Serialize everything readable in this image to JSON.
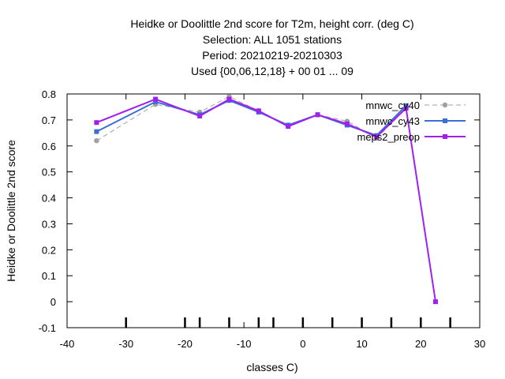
{
  "chart_data": {
    "type": "line",
    "title_lines": [
      "Heidke or Doolittle 2nd score  for T2m, height corr. (deg C)",
      "Selection: ALL    1051 stations",
      "Period: 20210219-20210303",
      "Used {00,06,12,18} + 00 01 ... 09"
    ],
    "xlabel": "classes C)",
    "ylabel": "Heidke or Doolittle 2nd score",
    "xlim": [
      -40,
      30
    ],
    "ylim": [
      -0.1,
      0.8
    ],
    "xticks": [
      -40,
      -30,
      -20,
      -10,
      0,
      10,
      20,
      30
    ],
    "yticks": [
      -0.1,
      0,
      0.1,
      0.2,
      0.3,
      0.4,
      0.5,
      0.6,
      0.7,
      0.8
    ],
    "ytick_labels": [
      "-0.1",
      "0",
      "0.1",
      "0.2",
      "0.3",
      "0.4",
      "0.5",
      "0.6",
      "0.7",
      "0.8"
    ],
    "class_marks": [
      -30,
      -20,
      -17.5,
      -12.5,
      -7.5,
      -5,
      0,
      5,
      10,
      15,
      20,
      25
    ],
    "grid": false,
    "legend_position": "top-right",
    "series": [
      {
        "name": "mnwc_cy40",
        "color": "#a0a0a0",
        "dash": true,
        "marker": "circle",
        "x": [
          -35,
          -25,
          -17.5,
          -12.5,
          -7.5,
          -2.5,
          2.5,
          7.5,
          12.5,
          17.5
        ],
        "y": [
          0.62,
          0.76,
          0.73,
          0.79,
          0.735,
          0.68,
          0.72,
          0.695,
          0.63,
          0.745
        ]
      },
      {
        "name": "mnwc_cy43",
        "color": "#3a6fd6",
        "dash": false,
        "marker": "square",
        "x": [
          -35,
          -25,
          -17.5,
          -12.5,
          -7.5,
          -2.5,
          2.5,
          7.5,
          12.5,
          17.5
        ],
        "y": [
          0.655,
          0.77,
          0.72,
          0.775,
          0.73,
          0.68,
          0.72,
          0.68,
          0.64,
          0.755
        ]
      },
      {
        "name": "meps2_preop",
        "color": "#a020f0",
        "dash": false,
        "marker": "square",
        "x": [
          -35,
          -25,
          -17.5,
          -12.5,
          -7.5,
          -2.5,
          2.5,
          7.5,
          12.5,
          17.5,
          22.5
        ],
        "y": [
          0.69,
          0.78,
          0.715,
          0.78,
          0.735,
          0.675,
          0.72,
          0.685,
          0.635,
          0.745,
          0.0
        ]
      }
    ]
  }
}
